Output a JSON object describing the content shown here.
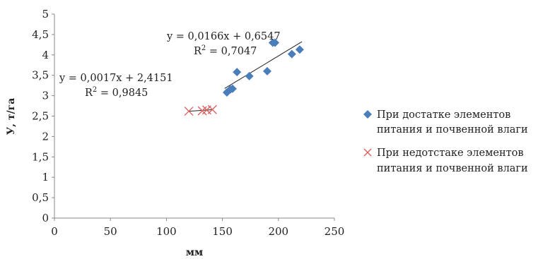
{
  "chart_data": {
    "type": "scatter",
    "xlabel": "мм",
    "ylabel": "У, т/га",
    "xlim": [
      0,
      250
    ],
    "ylim": [
      0,
      5
    ],
    "x_ticks": [
      "0",
      "50",
      "100",
      "150",
      "200",
      "250"
    ],
    "y_ticks": [
      "0",
      "0,5",
      "1",
      "1,5",
      "2",
      "2,5",
      "3",
      "3,5",
      "4",
      "4,5",
      "5"
    ],
    "grid": false,
    "legend_position": "right",
    "series": [
      {
        "name": "При достатке элементов питания и почвенной влаги",
        "marker": "diamond",
        "color": "#4a7ebb",
        "points": [
          [
            154,
            3.08
          ],
          [
            157,
            3.15
          ],
          [
            159,
            3.17
          ],
          [
            163,
            3.58
          ],
          [
            174,
            3.48
          ],
          [
            190,
            3.6
          ],
          [
            195,
            4.3
          ],
          [
            197,
            4.3
          ],
          [
            212,
            4.02
          ],
          [
            219,
            4.13
          ]
        ],
        "trendline": {
          "equation": "y = 0,0166x + 0,6547",
          "r2_prefix": "R",
          "r2_exp": "2",
          "r2_value": " = 0,7047",
          "slope": 0.0166,
          "intercept": 0.6547,
          "x_range": [
            152,
            221
          ]
        }
      },
      {
        "name": "При недотстаке элементов питания и почвенной влаги",
        "marker": "x",
        "color": "#e06060",
        "points": [
          [
            120,
            2.62
          ],
          [
            132,
            2.63
          ],
          [
            136,
            2.65
          ],
          [
            141,
            2.66
          ]
        ],
        "trendline": {
          "equation": "y = 0,0017x + 2,4151",
          "r2_prefix": "R",
          "r2_exp": "2",
          "r2_value": " = 0,9845",
          "slope": 0.0017,
          "intercept": 2.4151,
          "x_range": [
            120,
            141
          ]
        }
      }
    ]
  }
}
